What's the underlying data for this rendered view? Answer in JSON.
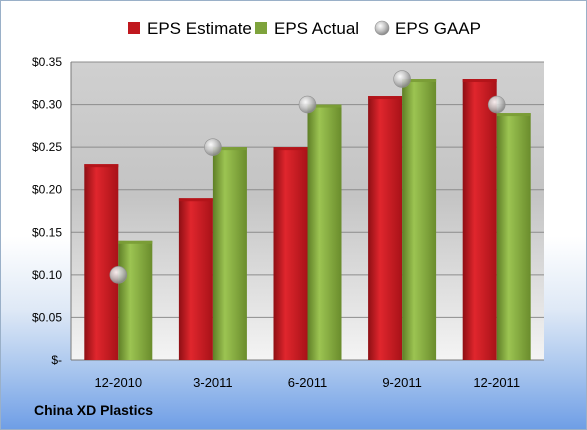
{
  "company": "China XD Plastics",
  "chart_data": {
    "type": "bar",
    "categories": [
      "12-2010",
      "3-2011",
      "6-2011",
      "9-2011",
      "12-2011"
    ],
    "series": [
      {
        "name": "EPS Estimate",
        "kind": "bar",
        "color": "#c0181e",
        "values": [
          0.23,
          0.19,
          0.25,
          0.31,
          0.33
        ]
      },
      {
        "name": "EPS Actual",
        "kind": "bar",
        "color": "#7ea33c",
        "values": [
          0.14,
          0.25,
          0.3,
          0.33,
          0.29
        ]
      },
      {
        "name": "EPS GAAP",
        "kind": "marker",
        "color": "#b5b5b5",
        "values": [
          0.1,
          0.25,
          0.3,
          0.33,
          0.3
        ]
      }
    ],
    "ylim": [
      0,
      0.35
    ],
    "yticks": [
      0,
      0.05,
      0.1,
      0.15,
      0.2,
      0.25,
      0.3,
      0.35
    ],
    "ytick_labels": [
      "$-",
      "$0.05",
      "$0.10",
      "$0.15",
      "$0.20",
      "$0.25",
      "$0.30",
      "$0.35"
    ],
    "grid": true,
    "legend_position": "top"
  }
}
